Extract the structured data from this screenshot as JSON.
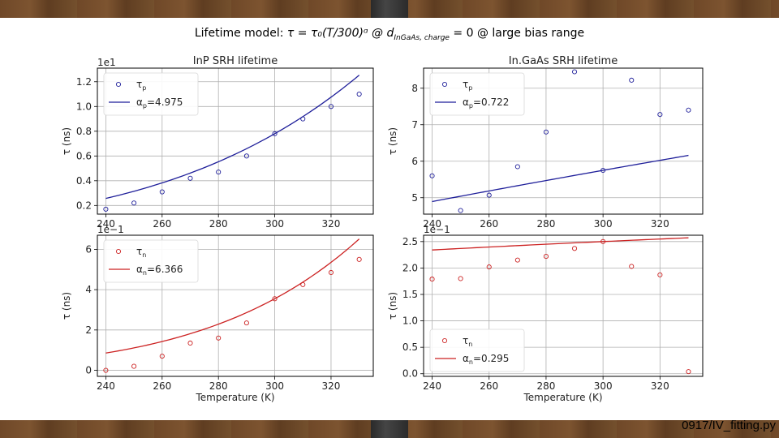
{
  "slide": {
    "title_prefix": "Lifetime model: ",
    "title_formula": "τ = τ₀(T/300)ᵅ @ d",
    "title_subscript": "InGaAs, charge",
    "title_suffix": " = 0 @ large bias range",
    "footer": "0917/IV_fitting.py"
  },
  "colors": {
    "blue": "#1f1f9a",
    "red": "#cc2222",
    "grid": "#b0b0b0"
  },
  "chart_data": [
    {
      "id": "inp-p",
      "type": "scatter",
      "color": "blue",
      "title": "InP SRH lifetime",
      "ylabel": "τ (ns)",
      "xlabel": "",
      "offset_label": "1e1",
      "xlim": [
        237,
        335
      ],
      "ylim": [
        0.13,
        1.31
      ],
      "xticks": [
        240,
        260,
        280,
        300,
        320
      ],
      "yticks": [
        0.2,
        0.4,
        0.6,
        0.8,
        1.0,
        1.2
      ],
      "ytick_labels": [
        "0.2",
        "0.4",
        "0.6",
        "0.8",
        "1.0",
        "1.2"
      ],
      "x": [
        240,
        250,
        260,
        270,
        280,
        290,
        300,
        310,
        320,
        330
      ],
      "y": [
        0.17,
        0.22,
        0.31,
        0.42,
        0.47,
        0.6,
        0.78,
        0.9,
        1.0,
        1.1
      ],
      "fit": {
        "tau0": 0.78,
        "alpha": 4.975
      },
      "legend": {
        "position": "top-left",
        "marker_label": "τ",
        "marker_sub": "p",
        "line_label": "α",
        "line_sub": "p",
        "line_value": "=4.975"
      }
    },
    {
      "id": "ingaas-p",
      "type": "scatter",
      "color": "blue",
      "title": "In.GaAs SRH lifetime",
      "ylabel": "τ (ns)",
      "xlabel": "",
      "offset_label": "",
      "xlim": [
        237,
        335
      ],
      "ylim": [
        4.55,
        8.55
      ],
      "xticks": [
        240,
        260,
        280,
        300,
        320
      ],
      "yticks": [
        5,
        6,
        7,
        8
      ],
      "ytick_labels": [
        "5",
        "6",
        "7",
        "8"
      ],
      "x": [
        240,
        250,
        260,
        270,
        280,
        290,
        300,
        310,
        320,
        330
      ],
      "y": [
        5.6,
        4.65,
        5.07,
        5.85,
        6.8,
        8.45,
        5.75,
        8.22,
        7.28,
        7.4
      ],
      "fit": {
        "tau0": 5.75,
        "alpha": 0.722
      },
      "legend": {
        "position": "top-left",
        "marker_label": "τ",
        "marker_sub": "p",
        "line_label": "α",
        "line_sub": "p",
        "line_value": "=0.722"
      }
    },
    {
      "id": "inp-n",
      "type": "scatter",
      "color": "red",
      "title": "",
      "ylabel": "τ (ns)",
      "xlabel": "Temperature (K)",
      "offset_label": "1e−1",
      "xlim": [
        237,
        335
      ],
      "ylim": [
        -0.3,
        6.7
      ],
      "xticks": [
        240,
        260,
        280,
        300,
        320
      ],
      "yticks": [
        0,
        2,
        4,
        6
      ],
      "ytick_labels": [
        "0",
        "2",
        "4",
        "6"
      ],
      "x": [
        240,
        250,
        260,
        270,
        280,
        290,
        300,
        310,
        320,
        330
      ],
      "y": [
        0.0,
        0.2,
        0.7,
        1.35,
        1.6,
        2.35,
        3.55,
        4.25,
        4.85,
        5.5
      ],
      "fit": {
        "tau0": 3.55,
        "alpha": 6.366
      },
      "legend": {
        "position": "top-left",
        "marker_label": "τ",
        "marker_sub": "n",
        "line_label": "α",
        "line_sub": "n",
        "line_value": "=6.366"
      }
    },
    {
      "id": "ingaas-n",
      "type": "scatter",
      "color": "red",
      "title": "",
      "ylabel": "τ (ns)",
      "xlabel": "Temperature (K)",
      "offset_label": "1e−1",
      "xlim": [
        237,
        335
      ],
      "ylim": [
        -0.05,
        2.62
      ],
      "xticks": [
        240,
        260,
        280,
        300,
        320
      ],
      "yticks": [
        0.0,
        0.5,
        1.0,
        1.5,
        2.0,
        2.5
      ],
      "ytick_labels": [
        "0.0",
        "0.5",
        "1.0",
        "1.5",
        "2.0",
        "2.5"
      ],
      "x": [
        240,
        250,
        260,
        270,
        280,
        290,
        300,
        310,
        320,
        330
      ],
      "y": [
        1.79,
        1.8,
        2.02,
        2.15,
        2.22,
        2.37,
        2.5,
        2.03,
        1.87,
        0.04
      ],
      "fit": {
        "tau0": 2.5,
        "alpha": 0.295
      },
      "legend": {
        "position": "bottom-left",
        "marker_label": "τ",
        "marker_sub": "n",
        "line_label": "α",
        "line_sub": "n",
        "line_value": "=0.295"
      }
    }
  ]
}
